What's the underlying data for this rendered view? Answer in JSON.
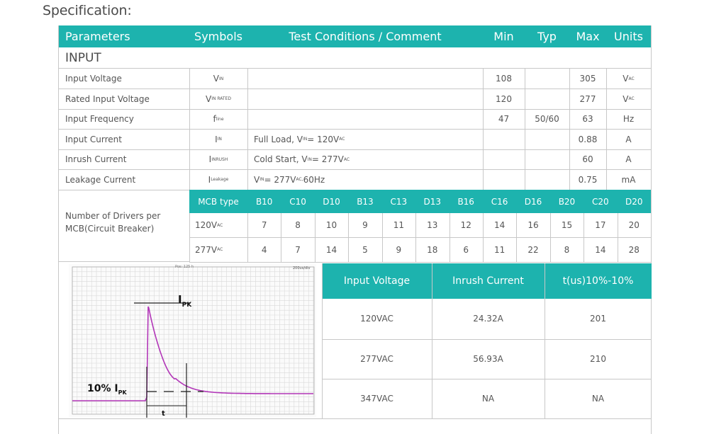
{
  "title": "Specification:",
  "headers": [
    "Parameters",
    "Symbols",
    "Test Conditions / Comment",
    "Min",
    "Typ",
    "Max",
    "Units"
  ],
  "section": "INPUT",
  "rows": [
    {
      "param": "Input Voltage",
      "sym": "V",
      "sym_sub": "IN",
      "cond": "",
      "min": "108",
      "typ": "",
      "max": "305",
      "unit": "V",
      "unit_sub": "AC"
    },
    {
      "param": "Rated Input Voltage",
      "sym": "V",
      "sym_sub": "IN RATED",
      "cond": "",
      "min": "120",
      "typ": "",
      "max": "277",
      "unit": "V",
      "unit_sub": "AC"
    },
    {
      "param": "Input Frequency",
      "sym": "f",
      "sym_sub": "line",
      "cond": "",
      "min": "47",
      "typ": "50/60",
      "max": "63",
      "unit": "Hz",
      "unit_sub": ""
    },
    {
      "param": "Input Current",
      "sym": "I",
      "sym_sub": "IN",
      "cond": "Full Load, V",
      "cond_sub": "IN",
      "cond_tail": " = 120V",
      "cond_tail_sub": "AC",
      "cond_end": "",
      "min": "",
      "typ": "",
      "max": "0.88",
      "unit": "A",
      "unit_sub": ""
    },
    {
      "param": "Inrush Current",
      "sym": "I",
      "sym_sub": "INRUSH",
      "cond": "Cold Start, V",
      "cond_sub": "IN",
      "cond_tail": " = 277V",
      "cond_tail_sub": "AC",
      "cond_end": "",
      "min": "",
      "typ": "",
      "max": "60",
      "unit": "A",
      "unit_sub": ""
    },
    {
      "param": "Leakage Current",
      "sym": "I",
      "sym_sub": "Leakage",
      "cond": "V",
      "cond_sub": "IN",
      "cond_tail": " = 277V",
      "cond_tail_sub": "AC,",
      "cond_end": " 60Hz",
      "min": "",
      "typ": "",
      "max": "0.75",
      "unit": "mA",
      "unit_sub": ""
    }
  ],
  "mcb": {
    "label": "Number of Drivers per MCB(Circuit Breaker)",
    "header_label": "MCB type",
    "types": [
      "B10",
      "C10",
      "D10",
      "B13",
      "C13",
      "D13",
      "B16",
      "C16",
      "D16",
      "B20",
      "C20",
      "D20"
    ],
    "rows": [
      {
        "v": "120V",
        "v_sub": "AC",
        "values": [
          "7",
          "8",
          "10",
          "9",
          "11",
          "13",
          "12",
          "14",
          "16",
          "15",
          "17",
          "20"
        ]
      },
      {
        "v": "277V",
        "v_sub": "AC",
        "values": [
          "4",
          "7",
          "14",
          "5",
          "9",
          "18",
          "6",
          "11",
          "22",
          "8",
          "14",
          "28"
        ]
      }
    ]
  },
  "scope": {
    "top_left": "Pos: 125 h",
    "top_right": "200us/div",
    "ipk": "I",
    "ipk_sub": "PK",
    "pct": "10% I",
    "pct_sub": "PK",
    "t": "t",
    "trace_color": "#b236b8"
  },
  "inrush_table": {
    "headers": [
      "Input Voltage",
      "Inrush Current",
      "t(us)10%-10%"
    ],
    "rows": [
      [
        "120VAC",
        "24.32A",
        "201"
      ],
      [
        "277VAC",
        "56.93A",
        "210"
      ],
      [
        "347VAC",
        "NA",
        "NA"
      ]
    ]
  },
  "colors": {
    "accent": "#1db3ae",
    "border": "#c8c8c8",
    "text": "#555555"
  }
}
